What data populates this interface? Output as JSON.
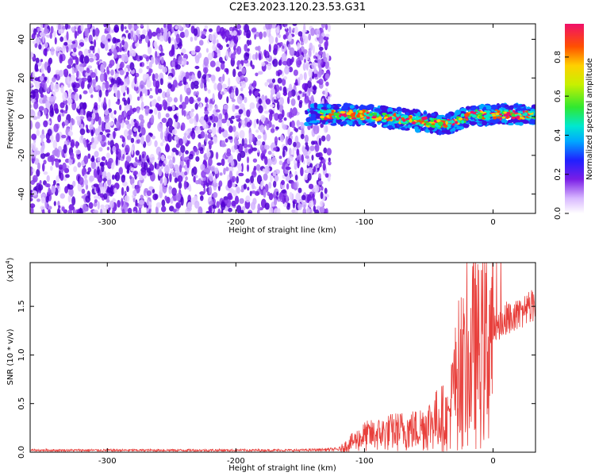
{
  "title": "C2E3.2023.120.23.53.G31",
  "chart_data": [
    {
      "type": "heatmap",
      "name": "spectrogram",
      "xlabel": "Height of straight line (km)",
      "ylabel": "Frequency (Hz)",
      "xlim": [
        -360,
        33
      ],
      "ylim": [
        -50,
        48
      ],
      "xticks": [
        -300,
        -200,
        -100,
        0
      ],
      "yticks": [
        -40,
        -20,
        0,
        20,
        40
      ],
      "colorbar": {
        "label": "Normalized spectral amplitude",
        "range": [
          0,
          0.97
        ],
        "ticks": [
          0.0,
          0.2,
          0.4,
          0.6,
          0.8
        ]
      },
      "regions": [
        {
          "x_range": [
            -360,
            -127
          ],
          "y_range": [
            -50,
            48
          ],
          "description_level": 0.12,
          "pattern": "broadband noise"
        },
        {
          "x_range": [
            -145,
            33
          ],
          "y_range": [
            -8,
            7
          ],
          "description_level": 0.45,
          "pattern": "narrow signal band near 0 Hz, dips to about -5 Hz near -35 km"
        }
      ]
    },
    {
      "type": "line",
      "name": "snr",
      "xlabel": "Height of straight line (km)",
      "ylabel": "SNR (10 * v/v)",
      "multiplier_label": "(x10",
      "multiplier_exp": "4",
      "xlim": [
        -360,
        33
      ],
      "ylim": [
        0,
        1.95
      ],
      "xticks": [
        -300,
        -200,
        -100,
        0
      ],
      "yticks": [
        0.0,
        0.5,
        1.0,
        1.5
      ],
      "color": "#e8403c",
      "series": [
        {
          "x": [
            -360,
            -300,
            -200,
            -150,
            -120,
            -110,
            -100,
            -90,
            -80,
            -70,
            -60,
            -50,
            -40,
            -35,
            -30,
            -25,
            -20,
            -15,
            -10,
            -5,
            0,
            5,
            10,
            15,
            20,
            25,
            33
          ],
          "y": [
            0.02,
            0.02,
            0.02,
            0.02,
            0.03,
            0.12,
            0.2,
            0.22,
            0.25,
            0.27,
            0.28,
            0.35,
            0.45,
            0.4,
            0.8,
            1.1,
            0.9,
            1.3,
            1.2,
            1.35,
            1.5,
            1.45,
            1.55,
            1.55,
            1.6,
            1.65,
            1.7
          ]
        }
      ]
    }
  ]
}
